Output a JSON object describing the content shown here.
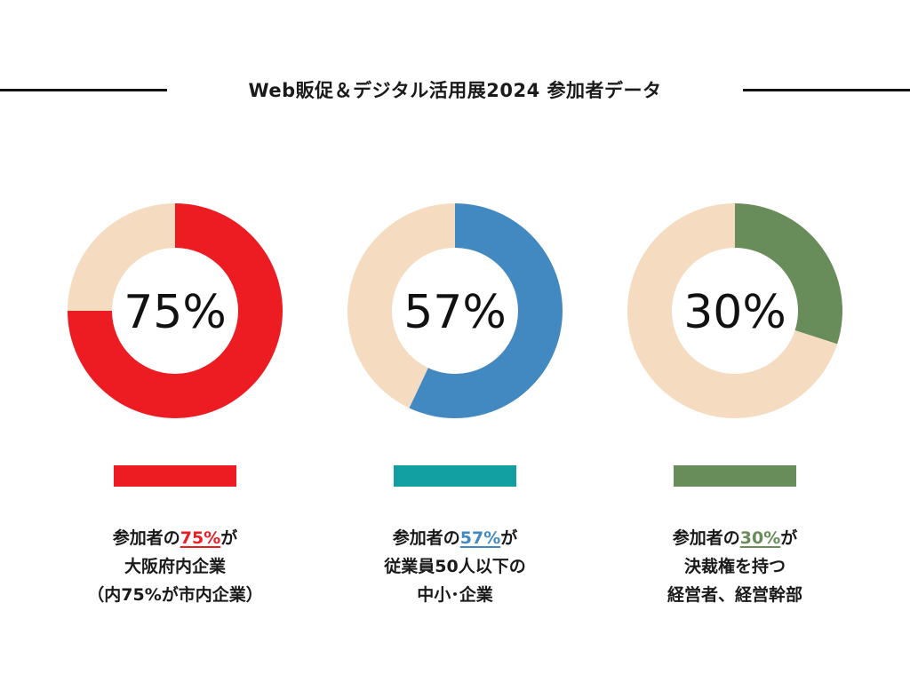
{
  "title": "Web販促＆デジタル活用展2024 参加者データ",
  "colors": {
    "remainder": "#f5dcc0",
    "red": "#ec1c22",
    "blue": "#4289c2",
    "green": "#688d5a",
    "teal": "#12a0a3"
  },
  "chart_data": [
    {
      "type": "pie",
      "label": "75%",
      "values": [
        75,
        25
      ],
      "colors": [
        "#ec1c22",
        "#f5dcc0"
      ],
      "bar_color": "#ec1c22"
    },
    {
      "type": "pie",
      "label": "57%",
      "values": [
        57,
        43
      ],
      "colors": [
        "#4289c2",
        "#f5dcc0"
      ],
      "bar_color": "#12a0a3"
    },
    {
      "type": "pie",
      "label": "30%",
      "values": [
        30,
        70
      ],
      "colors": [
        "#688d5a",
        "#f5dcc0"
      ],
      "bar_color": "#688d5a"
    }
  ],
  "captions": [
    {
      "pre": "参加者の",
      "highlight": "75%",
      "post": "が",
      "line2": "大阪府内企業",
      "line3": "（内75%が市内企業）"
    },
    {
      "pre": "参加者の",
      "highlight": "57%",
      "post": "が",
      "line2": "従業員50人以下の",
      "line3": "中小･企業"
    },
    {
      "pre": "参加者の",
      "highlight": "30%",
      "post": "が",
      "line2": "決裁権を持つ",
      "line3": "経営者、経営幹部"
    }
  ]
}
